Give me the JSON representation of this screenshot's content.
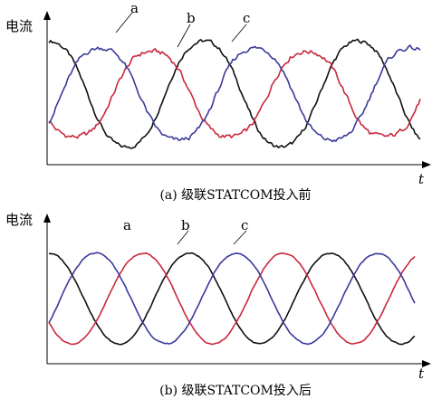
{
  "colors": {
    "a": "#111111",
    "b": "#c8283c",
    "c": "#3a3a9a",
    "axis": "#000000"
  },
  "chart_data": [
    {
      "type": "line",
      "caption": "(a) 级联STATCOM投入前",
      "ylabel": "电流",
      "xlabel": "t",
      "x_range": [
        0,
        2.4
      ],
      "y_range": [
        -1,
        1
      ],
      "phase_labels": [
        "a",
        "b",
        "c"
      ],
      "series": [
        {
          "name": "a",
          "amplitude": 0.85,
          "phase_deg": 0,
          "periods": 2.4,
          "distortion": 0.12
        },
        {
          "name": "b",
          "amplitude": 0.7,
          "phase_deg": 120,
          "periods": 2.4,
          "distortion": 0.15
        },
        {
          "name": "c",
          "amplitude": 0.75,
          "phase_deg": 240,
          "periods": 2.4,
          "distortion": 0.14
        }
      ]
    },
    {
      "type": "line",
      "caption": "(b) 级联STATCOM投入后",
      "ylabel": "电流",
      "xlabel": "t",
      "x_range": [
        0,
        2.6
      ],
      "y_range": [
        -1,
        1
      ],
      "phase_labels": [
        "a",
        "b",
        "c"
      ],
      "series": [
        {
          "name": "a",
          "amplitude": 0.82,
          "phase_deg": 0,
          "periods": 2.6,
          "distortion": 0.04
        },
        {
          "name": "b",
          "amplitude": 0.82,
          "phase_deg": 120,
          "periods": 2.6,
          "distortion": 0.04
        },
        {
          "name": "c",
          "amplitude": 0.82,
          "phase_deg": 240,
          "periods": 2.6,
          "distortion": 0.04
        }
      ]
    }
  ]
}
